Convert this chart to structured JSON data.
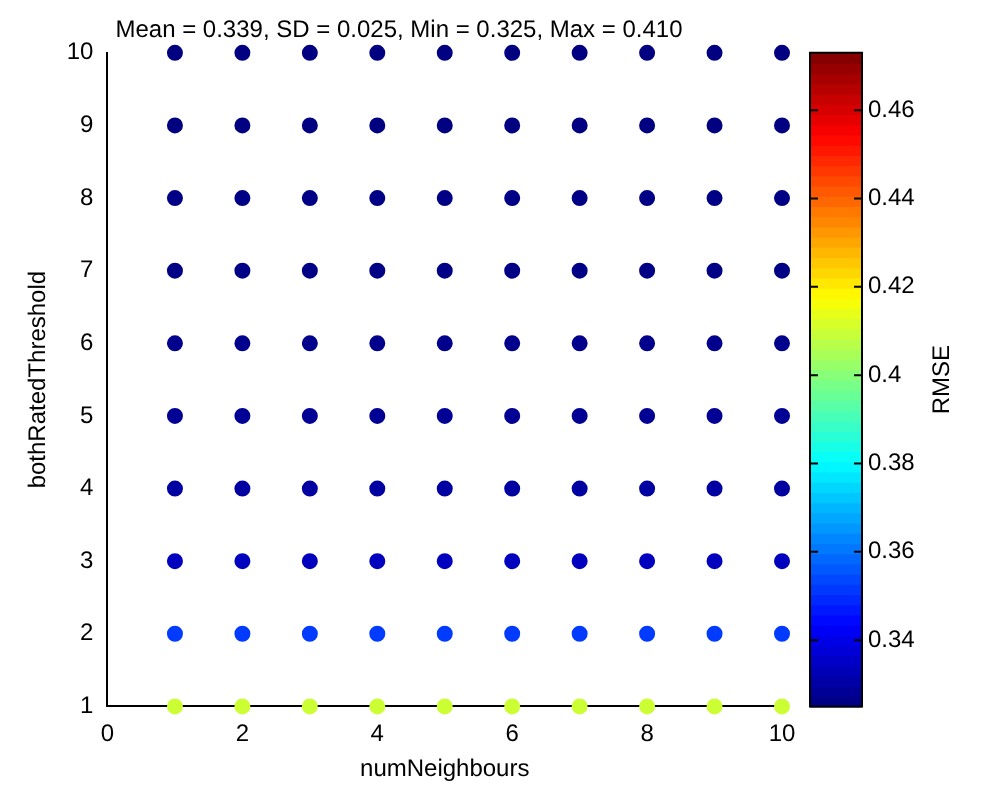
{
  "chart_data": {
    "type": "scatter",
    "title": "Mean = 0.339, SD = 0.025, Min = 0.325, Max = 0.410",
    "xlabel": "numNeighbours",
    "ylabel": "bothRatedThreshold",
    "clabel": "RMSE",
    "x": [
      1,
      2,
      3,
      4,
      5,
      6,
      7,
      8,
      9,
      10,
      1,
      2,
      3,
      4,
      5,
      6,
      7,
      8,
      9,
      10,
      1,
      2,
      3,
      4,
      5,
      6,
      7,
      8,
      9,
      10,
      1,
      2,
      3,
      4,
      5,
      6,
      7,
      8,
      9,
      10,
      1,
      2,
      3,
      4,
      5,
      6,
      7,
      8,
      9,
      10,
      1,
      2,
      3,
      4,
      5,
      6,
      7,
      8,
      9,
      10,
      1,
      2,
      3,
      4,
      5,
      6,
      7,
      8,
      9,
      10,
      1,
      2,
      3,
      4,
      5,
      6,
      7,
      8,
      9,
      10,
      1,
      2,
      3,
      4,
      5,
      6,
      7,
      8,
      9,
      10,
      1,
      2,
      3,
      4,
      5,
      6,
      7,
      8,
      9,
      10
    ],
    "values": [
      1,
      1,
      1,
      1,
      1,
      1,
      1,
      1,
      1,
      1,
      2,
      2,
      2,
      2,
      2,
      2,
      2,
      2,
      2,
      2,
      3,
      3,
      3,
      3,
      3,
      3,
      3,
      3,
      3,
      3,
      4,
      4,
      4,
      4,
      4,
      4,
      4,
      4,
      4,
      4,
      5,
      5,
      5,
      5,
      5,
      5,
      5,
      5,
      5,
      5,
      6,
      6,
      6,
      6,
      6,
      6,
      6,
      6,
      6,
      6,
      7,
      7,
      7,
      7,
      7,
      7,
      7,
      7,
      7,
      7,
      8,
      8,
      8,
      8,
      8,
      8,
      8,
      8,
      8,
      8,
      9,
      9,
      9,
      9,
      9,
      9,
      9,
      9,
      9,
      9,
      10,
      10,
      10,
      10,
      10,
      10,
      10,
      10,
      10,
      10
    ],
    "cvalues": [
      0.41,
      0.41,
      0.41,
      0.41,
      0.41,
      0.41,
      0.41,
      0.41,
      0.41,
      0.41,
      0.352,
      0.352,
      0.352,
      0.352,
      0.352,
      0.352,
      0.352,
      0.352,
      0.352,
      0.352,
      0.334,
      0.334,
      0.334,
      0.334,
      0.334,
      0.334,
      0.334,
      0.334,
      0.334,
      0.334,
      0.33,
      0.33,
      0.33,
      0.33,
      0.33,
      0.33,
      0.33,
      0.33,
      0.33,
      0.33,
      0.328,
      0.328,
      0.328,
      0.328,
      0.328,
      0.328,
      0.328,
      0.328,
      0.328,
      0.328,
      0.327,
      0.327,
      0.327,
      0.327,
      0.327,
      0.327,
      0.327,
      0.327,
      0.327,
      0.327,
      0.326,
      0.326,
      0.326,
      0.326,
      0.326,
      0.326,
      0.326,
      0.326,
      0.326,
      0.326,
      0.326,
      0.326,
      0.326,
      0.326,
      0.326,
      0.326,
      0.326,
      0.326,
      0.326,
      0.326,
      0.325,
      0.325,
      0.325,
      0.325,
      0.325,
      0.325,
      0.325,
      0.325,
      0.325,
      0.325,
      0.325,
      0.325,
      0.325,
      0.325,
      0.325,
      0.325,
      0.325,
      0.325,
      0.325,
      0.325
    ],
    "xlim": [
      0,
      10
    ],
    "xticks": [
      0,
      2,
      4,
      6,
      8,
      10
    ],
    "ylim": [
      1,
      10
    ],
    "yticks": [
      1,
      2,
      3,
      4,
      5,
      6,
      7,
      8,
      9,
      10
    ],
    "clim": [
      0.325,
      0.473
    ],
    "cticks": [
      0.34,
      0.36,
      0.38,
      0.4,
      0.42,
      0.44,
      0.46
    ],
    "marker": "circle",
    "grid": false,
    "legend": false
  }
}
